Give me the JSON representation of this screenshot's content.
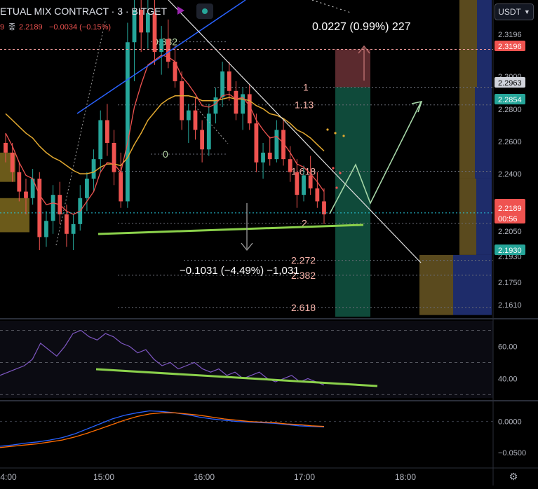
{
  "header": {
    "symbol_title": "ETUAL MIX CONTRACT · 3 · BITGET",
    "ohlc_prefix": "종",
    "close_value": "2.2189",
    "change_value": "−0.0034 (−0.15%)",
    "lead_fragment": "9"
  },
  "currency_button": {
    "label": "USDT",
    "icon": "chevron-down-icon"
  },
  "colors": {
    "up": "#26a69a",
    "down": "#ef5350",
    "ema_fast": "#ef5350",
    "ema_slow": "#e2a930",
    "trendline_blue": "#2962ff",
    "support_green": "#8bd14b",
    "rsi_line": "#7e57c2",
    "macd_line": "#2962ff",
    "signal_line": "#ff6d00",
    "fib_text": "#f5b1a8"
  },
  "annotations": {
    "top_measure": "0.0227 (0.99%) 227",
    "bottom_measure": "−0.1031 (−4.49%) −1,031"
  },
  "fib_levels": [
    {
      "label": "0.382",
      "price": 2.3243
    },
    {
      "label": "0",
      "price": 2.2551
    },
    {
      "label": "1",
      "price": 2.2963
    },
    {
      "label": "1.13",
      "price": 2.2854
    },
    {
      "label": "1.618",
      "price": 2.2445
    },
    {
      "label": "2",
      "price": 2.2125
    },
    {
      "label": "2.272",
      "price": 2.1897
    },
    {
      "label": "2.382",
      "price": 2.1805
    },
    {
      "label": "2.618",
      "price": 2.1607
    }
  ],
  "price_badges": [
    {
      "label": "2.3196",
      "kind": "red",
      "price": 2.3196
    },
    {
      "label": "2.2963",
      "kind": "gray",
      "price": 2.2963
    },
    {
      "label": "2.2854",
      "kind": "green",
      "price": 2.2854
    },
    {
      "label": "2.2189",
      "kind": "red",
      "price": 2.2189
    },
    {
      "label": "00:56",
      "kind": "red-sub",
      "price": 2.2189
    },
    {
      "label": "2.1930",
      "kind": "green",
      "price": 2.193
    }
  ],
  "chart_data": [
    {
      "type": "candlestick",
      "title": "ETUAL MIX CONTRACT · 3 · BITGET",
      "yaxis_ticks": [
        "2.3196",
        "2.3000",
        "2.2800",
        "2.2600",
        "2.2400",
        "2.2050",
        "2.1930",
        "2.1750",
        "2.1610"
      ],
      "ylim": [
        2.155,
        2.35
      ],
      "xaxis_ticks": [
        "4:00",
        "15:00",
        "16:00",
        "17:00",
        "18:00"
      ],
      "candles": [
        {
          "o": 2.262,
          "h": 2.268,
          "l": 2.25,
          "c": 2.256
        },
        {
          "o": 2.256,
          "h": 2.262,
          "l": 2.238,
          "c": 2.244
        },
        {
          "o": 2.244,
          "h": 2.25,
          "l": 2.226,
          "c": 2.232
        },
        {
          "o": 2.232,
          "h": 2.24,
          "l": 2.218,
          "c": 2.228
        },
        {
          "o": 2.228,
          "h": 2.246,
          "l": 2.224,
          "c": 2.24
        },
        {
          "o": 2.24,
          "h": 2.244,
          "l": 2.196,
          "c": 2.204
        },
        {
          "o": 2.204,
          "h": 2.22,
          "l": 2.198,
          "c": 2.214
        },
        {
          "o": 2.214,
          "h": 2.236,
          "l": 2.206,
          "c": 2.23
        },
        {
          "o": 2.23,
          "h": 2.238,
          "l": 2.212,
          "c": 2.218
        },
        {
          "o": 2.218,
          "h": 2.224,
          "l": 2.198,
          "c": 2.206
        },
        {
          "o": 2.206,
          "h": 2.218,
          "l": 2.196,
          "c": 2.212
        },
        {
          "o": 2.212,
          "h": 2.236,
          "l": 2.208,
          "c": 2.228
        },
        {
          "o": 2.228,
          "h": 2.244,
          "l": 2.22,
          "c": 2.24
        },
        {
          "o": 2.24,
          "h": 2.258,
          "l": 2.232,
          "c": 2.252
        },
        {
          "o": 2.252,
          "h": 2.282,
          "l": 2.244,
          "c": 2.276
        },
        {
          "o": 2.276,
          "h": 2.286,
          "l": 2.254,
          "c": 2.262
        },
        {
          "o": 2.262,
          "h": 2.27,
          "l": 2.236,
          "c": 2.244
        },
        {
          "o": 2.244,
          "h": 2.256,
          "l": 2.222,
          "c": 2.226
        },
        {
          "o": 2.226,
          "h": 2.336,
          "l": 2.222,
          "c": 2.324
        },
        {
          "o": 2.324,
          "h": 2.35,
          "l": 2.3,
          "c": 2.344
        },
        {
          "o": 2.344,
          "h": 2.35,
          "l": 2.318,
          "c": 2.33
        },
        {
          "o": 2.33,
          "h": 2.35,
          "l": 2.32,
          "c": 2.342
        },
        {
          "o": 2.342,
          "h": 2.35,
          "l": 2.31,
          "c": 2.318
        },
        {
          "o": 2.318,
          "h": 2.334,
          "l": 2.304,
          "c": 2.326
        },
        {
          "o": 2.326,
          "h": 2.338,
          "l": 2.308,
          "c": 2.312
        },
        {
          "o": 2.312,
          "h": 2.322,
          "l": 2.296,
          "c": 2.3
        },
        {
          "o": 2.3,
          "h": 2.306,
          "l": 2.27,
          "c": 2.276
        },
        {
          "o": 2.276,
          "h": 2.286,
          "l": 2.262,
          "c": 2.282
        },
        {
          "o": 2.282,
          "h": 2.29,
          "l": 2.264,
          "c": 2.27
        },
        {
          "o": 2.27,
          "h": 2.276,
          "l": 2.25,
          "c": 2.258
        },
        {
          "o": 2.258,
          "h": 2.286,
          "l": 2.254,
          "c": 2.28
        },
        {
          "o": 2.28,
          "h": 2.296,
          "l": 2.274,
          "c": 2.29
        },
        {
          "o": 2.29,
          "h": 2.312,
          "l": 2.284,
          "c": 2.306
        },
        {
          "o": 2.306,
          "h": 2.312,
          "l": 2.288,
          "c": 2.294
        },
        {
          "o": 2.294,
          "h": 2.3,
          "l": 2.276,
          "c": 2.28
        },
        {
          "o": 2.28,
          "h": 2.296,
          "l": 2.27,
          "c": 2.292
        },
        {
          "o": 2.292,
          "h": 2.298,
          "l": 2.27,
          "c": 2.274
        },
        {
          "o": 2.274,
          "h": 2.28,
          "l": 2.244,
          "c": 2.25
        },
        {
          "o": 2.25,
          "h": 2.262,
          "l": 2.24,
          "c": 2.256
        },
        {
          "o": 2.256,
          "h": 2.266,
          "l": 2.248,
          "c": 2.252
        },
        {
          "o": 2.252,
          "h": 2.276,
          "l": 2.25,
          "c": 2.27
        },
        {
          "o": 2.27,
          "h": 2.276,
          "l": 2.248,
          "c": 2.252
        },
        {
          "o": 2.252,
          "h": 2.26,
          "l": 2.238,
          "c": 2.244
        },
        {
          "o": 2.244,
          "h": 2.252,
          "l": 2.222,
          "c": 2.23
        },
        {
          "o": 2.23,
          "h": 2.248,
          "l": 2.226,
          "c": 2.242
        },
        {
          "o": 2.242,
          "h": 2.254,
          "l": 2.23,
          "c": 2.234
        },
        {
          "o": 2.234,
          "h": 2.244,
          "l": 2.222,
          "c": 2.226
        },
        {
          "o": 2.226,
          "h": 2.234,
          "l": 2.212,
          "c": 2.218
        }
      ],
      "ema_fast": [
        2.268,
        2.26,
        2.25,
        2.242,
        2.24,
        2.23,
        2.224,
        2.225,
        2.224,
        2.22,
        2.218,
        2.22,
        2.226,
        2.232,
        2.244,
        2.25,
        2.249,
        2.244,
        2.262,
        2.284,
        2.298,
        2.31,
        2.313,
        2.316,
        2.315,
        2.312,
        2.303,
        2.298,
        2.292,
        2.285,
        2.284,
        2.286,
        2.291,
        2.292,
        2.289,
        2.29,
        2.285,
        2.276,
        2.27,
        2.265,
        2.266,
        2.262,
        2.256,
        2.249,
        2.247,
        2.243,
        2.238,
        2.232
      ],
      "ema_slow": [
        2.28,
        2.276,
        2.272,
        2.268,
        2.265,
        2.26,
        2.256,
        2.253,
        2.251,
        2.248,
        2.245,
        2.243,
        2.243,
        2.244,
        2.247,
        2.249,
        2.249,
        2.248,
        2.253,
        2.261,
        2.268,
        2.276,
        2.281,
        2.286,
        2.289,
        2.291,
        2.291,
        2.291,
        2.29,
        2.288,
        2.288,
        2.288,
        2.289,
        2.29,
        2.289,
        2.289,
        2.288,
        2.285,
        2.283,
        2.28,
        2.279,
        2.277,
        2.274,
        2.27,
        2.268,
        2.265,
        2.261,
        2.257
      ]
    },
    {
      "type": "line",
      "title": "RSI",
      "yaxis_ticks": [
        "60.00",
        "40.00"
      ],
      "ylim": [
        28,
        75
      ],
      "values": [
        42,
        44,
        46,
        48,
        52,
        62,
        58,
        54,
        60,
        68,
        70,
        66,
        64,
        68,
        66,
        62,
        60,
        56,
        58,
        52,
        48,
        50,
        46,
        48,
        50,
        46,
        44,
        46,
        42,
        44,
        40,
        42,
        44,
        40,
        38,
        40,
        42,
        38,
        40,
        38,
        36
      ]
    },
    {
      "type": "line",
      "title": "MACD",
      "yaxis_ticks": [
        "0.0000",
        "−0.0500"
      ],
      "ylim": [
        -0.075,
        0.03
      ],
      "macd": [
        -0.04,
        -0.038,
        -0.035,
        -0.033,
        -0.03,
        -0.026,
        -0.02,
        -0.012,
        -0.004,
        0.004,
        0.01,
        0.014,
        0.017,
        0.016,
        0.014,
        0.011,
        0.007,
        0.004,
        0.002,
        0.0,
        -0.001,
        -0.002,
        -0.003,
        -0.005,
        -0.007,
        -0.008,
        -0.009
      ],
      "signal": [
        -0.042,
        -0.04,
        -0.038,
        -0.036,
        -0.033,
        -0.03,
        -0.025,
        -0.019,
        -0.012,
        -0.005,
        0.002,
        0.008,
        0.012,
        0.014,
        0.014,
        0.012,
        0.01,
        0.007,
        0.004,
        0.002,
        0.0,
        -0.001,
        -0.002,
        -0.004,
        -0.005,
        -0.007,
        -0.008
      ]
    }
  ]
}
